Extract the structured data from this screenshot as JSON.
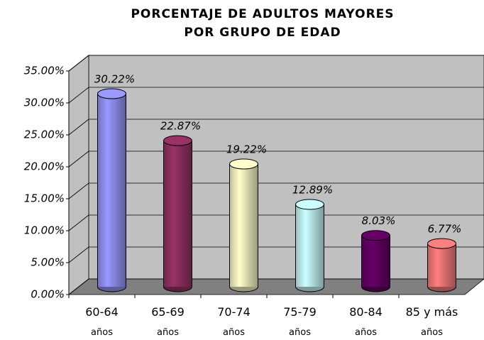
{
  "chart_data": {
    "type": "bar3d",
    "title": [
      "PORCENTAJE DE ADULTOS MAYORES",
      "POR GRUPO DE EDAD"
    ],
    "categories": [
      "60-64 años",
      "65-69 años",
      "70-74 años",
      "75-79 años",
      "80-84 años",
      "85 y más años"
    ],
    "values": [
      30.22,
      22.87,
      19.22,
      12.89,
      8.03,
      6.77
    ],
    "value_labels": [
      "30.22%",
      "22.87%",
      "19.22%",
      "12.89%",
      "8.03%",
      "6.77%"
    ],
    "colors": [
      "#9999ff",
      "#993366",
      "#ffffcc",
      "#ccffff",
      "#660066",
      "#ff8080"
    ],
    "ylim": [
      0,
      35
    ],
    "yticks": [
      {
        "value": 0,
        "label": "0.00%"
      },
      {
        "value": 5,
        "label": "5.00%"
      },
      {
        "value": 10,
        "label": "10.00%"
      },
      {
        "value": 15,
        "label": "15.00%"
      },
      {
        "value": 20,
        "label": "20.00%"
      },
      {
        "value": 25,
        "label": "25.00%"
      },
      {
        "value": 30,
        "label": "30.00%"
      },
      {
        "value": 35,
        "label": "35.00%"
      }
    ],
    "grid": true
  }
}
